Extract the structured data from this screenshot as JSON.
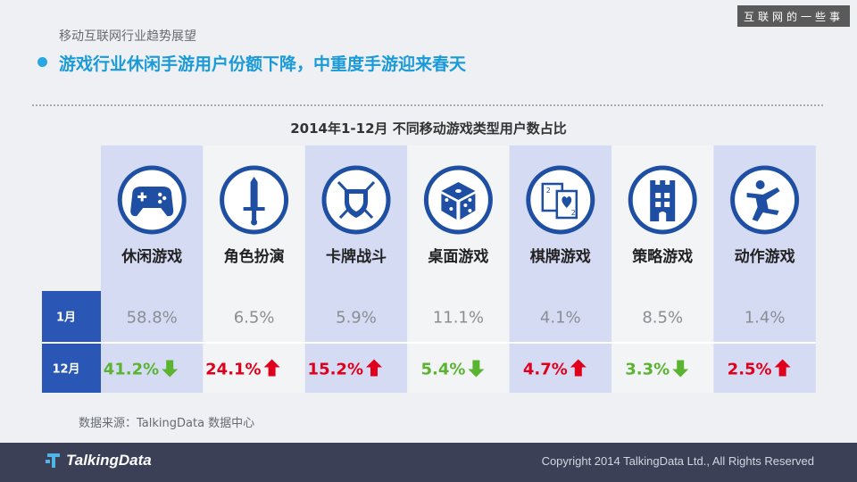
{
  "header": {
    "corner_tag": "互联网的一些事",
    "section": "移动互联网行业趋势展望",
    "headline": "游戏行业休闲手游用户份额下降，中重度手游迎来春天"
  },
  "chart_data": {
    "type": "table",
    "title": "2014年1-12月 不同移动游戏类型用户数占比",
    "unit": "%",
    "categories": [
      "休闲游戏",
      "角色扮演",
      "卡牌战斗",
      "桌面游戏",
      "棋牌游戏",
      "策略游戏",
      "动作游戏"
    ],
    "category_icons": [
      "gamepad-icon",
      "sword-icon",
      "shield-swords-icon",
      "dice-icon",
      "playing-cards-icon",
      "castle-tower-icon",
      "running-figure-icon"
    ],
    "series": [
      {
        "name": "1月",
        "values": [
          58.8,
          6.5,
          5.9,
          11.1,
          4.1,
          8.5,
          1.4
        ]
      },
      {
        "name": "12月",
        "values": [
          41.2,
          24.1,
          15.2,
          5.4,
          4.7,
          3.3,
          2.5
        ]
      }
    ],
    "value_labels": [
      [
        "58.8%",
        "6.5%",
        "5.9%",
        "11.1%",
        "4.1%",
        "8.5%",
        "1.4%"
      ],
      [
        "41.2%",
        "24.1%",
        "15.2%",
        "5.4%",
        "4.7%",
        "3.3%",
        "2.5%"
      ]
    ],
    "change_direction": [
      "down",
      "up",
      "up",
      "down",
      "up",
      "down",
      "up"
    ]
  },
  "colors": {
    "increase": "#e0001b",
    "decrease": "#5ab432",
    "icon_blue": "#1e4fa3",
    "row_label_bg": "#2a57b5",
    "column_highlight": "#d6dbf4",
    "column_plain": "#f3f4f6",
    "jan_value": "#8a8d94"
  },
  "source": "数据来源：TalkingData 数据中心",
  "footer": {
    "logo": "TalkingData",
    "copyright": "Copyright 2014 TalkingData Ltd., All Rights Reserved"
  }
}
